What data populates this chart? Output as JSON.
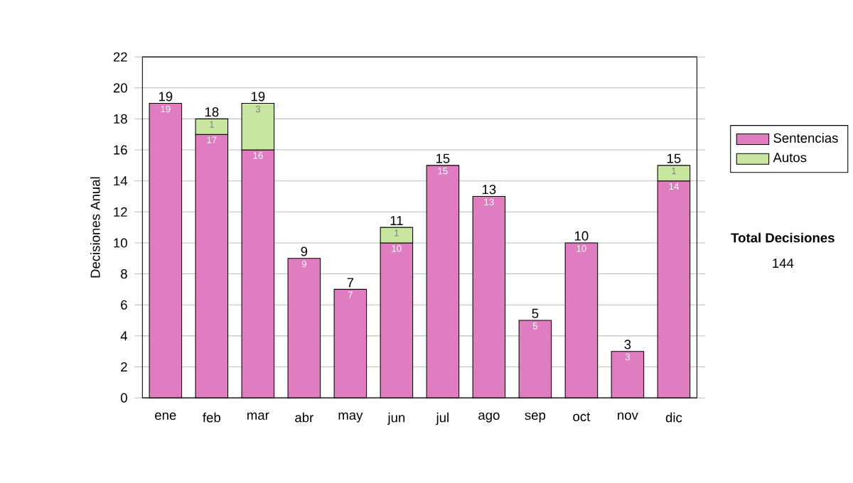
{
  "chart_data": {
    "type": "bar",
    "stacked": true,
    "ylabel": "Decisiones Anual",
    "categories": [
      "ene",
      "feb",
      "mar",
      "abr",
      "may",
      "jun",
      "jul",
      "ago",
      "sep",
      "oct",
      "nov",
      "dic"
    ],
    "series": [
      {
        "name": "Sentencias",
        "color": "#e07cc0",
        "values": [
          19,
          17,
          16,
          9,
          7,
          10,
          15,
          13,
          5,
          10,
          3,
          14
        ],
        "value_labels": [
          "19",
          "17",
          "16",
          "9",
          "7",
          "10",
          "15",
          "13",
          "5",
          "10",
          "3",
          "14"
        ]
      },
      {
        "name": "Autos",
        "color": "#c8e6a0",
        "values": [
          0,
          1,
          3,
          0,
          0,
          1,
          0,
          0,
          0,
          0,
          0,
          1
        ],
        "value_labels": [
          null,
          "1",
          "3",
          null,
          null,
          "1",
          null,
          null,
          null,
          null,
          null,
          "1"
        ]
      }
    ],
    "totals": [
      "19",
      "18",
      "19",
      "9",
      "7",
      "11",
      "15",
      "13",
      "5",
      "10",
      "3",
      "15"
    ],
    "ylim": [
      0,
      22
    ],
    "yticks": [
      0,
      2,
      4,
      6,
      8,
      10,
      12,
      14,
      16,
      18,
      20,
      22
    ],
    "grid": "y",
    "legend": "right",
    "annotations": [
      "Total Decisiones",
      "144"
    ]
  }
}
